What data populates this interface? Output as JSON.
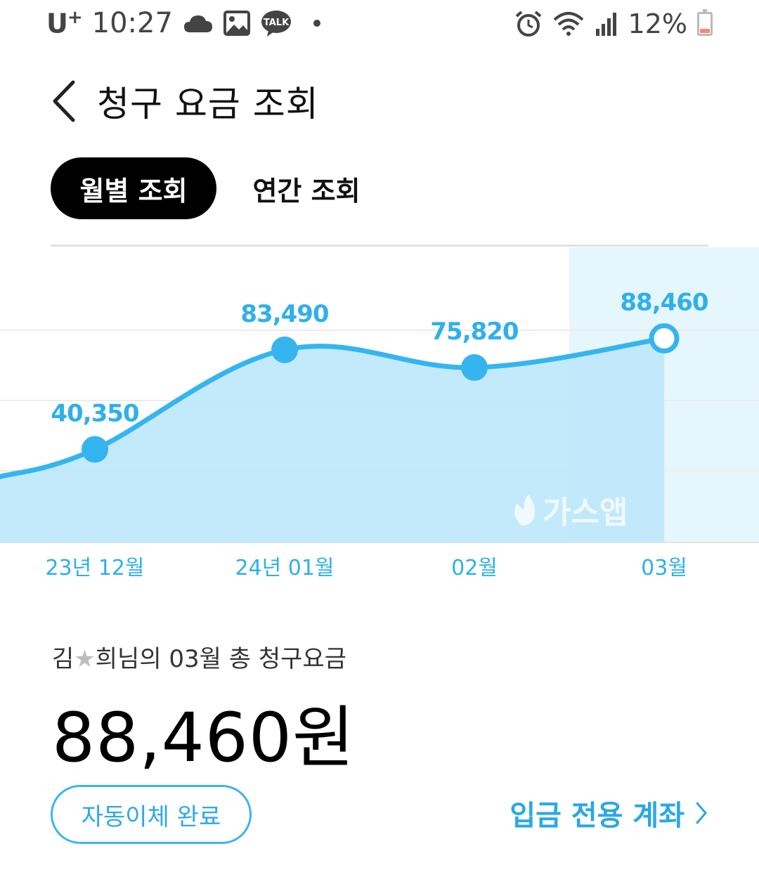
{
  "status_bar": {
    "carrier": "U",
    "carrier_plus": "+",
    "time": "10:27",
    "kakao_badge": "TALK",
    "battery": "12%"
  },
  "header": {
    "title": "청구 요금 조회"
  },
  "tabs": [
    {
      "label": "월별 조회",
      "active": true
    },
    {
      "label": "연간 조회",
      "active": false
    }
  ],
  "chart_data": {
    "type": "area",
    "categories": [
      "23년 12월",
      "24년 01월",
      "02월",
      "03월"
    ],
    "values": [
      40350,
      83490,
      75820,
      88460
    ],
    "value_labels": [
      "40,350",
      "83,490",
      "75,820",
      "88,460"
    ],
    "highlighted_index": 3,
    "watermark": "가스앱",
    "ylim": [
      0,
      110000
    ],
    "colors": {
      "line": "#35b5ef",
      "fill": "#bde8fb",
      "highlight": "#e6f6fd"
    }
  },
  "summary": {
    "name_prefix": "김",
    "name_masked": "★",
    "name_suffix": "희님의 03월 총 청구요금",
    "total": "88,460원"
  },
  "actions": {
    "autopay_label": "자동이체 완료",
    "account_link_label": "입금 전용 계좌"
  }
}
